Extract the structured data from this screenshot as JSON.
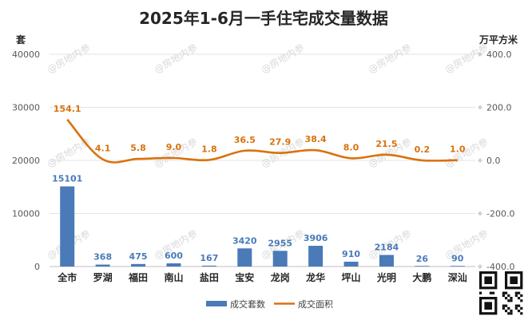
{
  "chart_data": {
    "type": "bar",
    "title": "2025年1-6月一手住宅成交量数据",
    "left_axis_unit": "套",
    "right_axis_unit": "万平方米",
    "categories": [
      "全市",
      "罗湖",
      "福田",
      "南山",
      "盐田",
      "宝安",
      "龙岗",
      "龙华",
      "坪山",
      "光明",
      "大鹏",
      "深汕"
    ],
    "series": [
      {
        "name": "成交套数",
        "type": "bar",
        "axis": "left",
        "color": "#4a7ab8",
        "values": [
          15101,
          368,
          475,
          600,
          167,
          3420,
          2955,
          3906,
          910,
          2184,
          26,
          90
        ],
        "labels": [
          "15101",
          "368",
          "475",
          "600",
          "167",
          "3420",
          "2955",
          "3906",
          "910",
          "2184",
          "26",
          "90"
        ]
      },
      {
        "name": "成交面积",
        "type": "line",
        "axis": "right",
        "color": "#d9720d",
        "values": [
          154.1,
          4.1,
          5.8,
          9.0,
          1.8,
          36.5,
          27.9,
          38.4,
          8.0,
          21.5,
          0.2,
          1.0
        ],
        "labels": [
          "154.1",
          "4.1",
          "5.8",
          "9.0",
          "1.8",
          "36.5",
          "27.9",
          "38.4",
          "8.0",
          "21.5",
          "0.2",
          "1.0"
        ]
      }
    ],
    "left_axis": {
      "ylim": [
        0,
        40000
      ],
      "ticks": [
        "0",
        "10000",
        "20000",
        "30000",
        "40000"
      ]
    },
    "right_axis": {
      "ylim": [
        -400,
        400
      ],
      "ticks": [
        "-400.0",
        "-200.0",
        "0.0",
        "200.0",
        "400.0"
      ]
    },
    "grid": true,
    "legend_position": "bottom",
    "watermark": "@房地内参"
  }
}
